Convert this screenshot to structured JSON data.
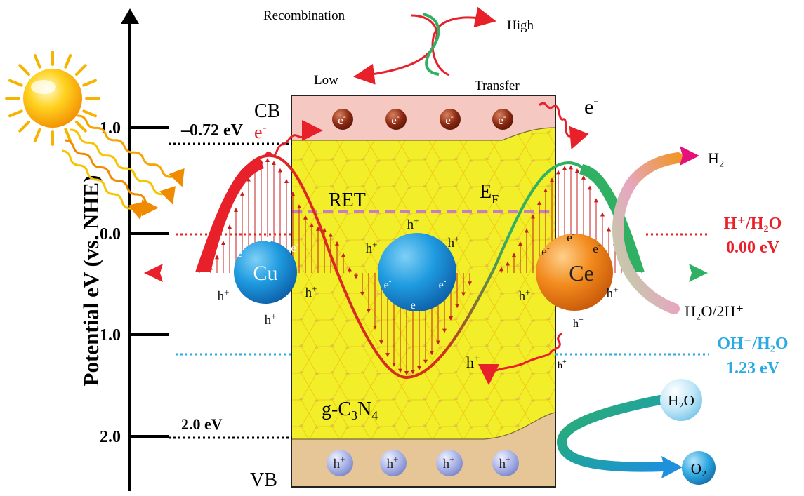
{
  "axis": {
    "ylabel": "Potential eV (vs. NHE)",
    "ticks": [
      "1.0",
      "0.0",
      "1.0",
      "2.0"
    ]
  },
  "levels": {
    "cb_level": "–0.72 eV",
    "vb_level": "2.0 eV",
    "h2_couple": "H⁺/H₂O",
    "h2_value": "0.00 eV",
    "o2_couple": "OH⁻/H₂O",
    "o2_value": "1.23 eV"
  },
  "band": {
    "cb": "CB",
    "vb": "VB",
    "material_prefix": "g-C",
    "material_sub1": "3",
    "material_mid": "N",
    "material_sub2": "4",
    "ret": "RET",
    "ef_main": "E",
    "ef_sub": "F"
  },
  "top": {
    "recombination": "Recombination",
    "high": "High",
    "low": "Low",
    "transfer": "Transfer"
  },
  "particles": {
    "cu": "Cu",
    "ce": "Ce",
    "electron": "e",
    "electron_sup": "-",
    "hole": "h",
    "hole_sup": "+"
  },
  "reactions": {
    "h2": "H₂",
    "h2o_2h": "H₂O/2H⁺",
    "h2o": "H₂O",
    "o2": "O₂"
  },
  "colors": {
    "red": "#e8202a",
    "green": "#2fb063",
    "blue_level": "#2aaae2",
    "yellow": "#f2ee2a",
    "cb_fill": "#f5c9c2",
    "vb_fill": "#e6c596",
    "purple": "#c77dc5",
    "magenta": "#e5127d"
  }
}
